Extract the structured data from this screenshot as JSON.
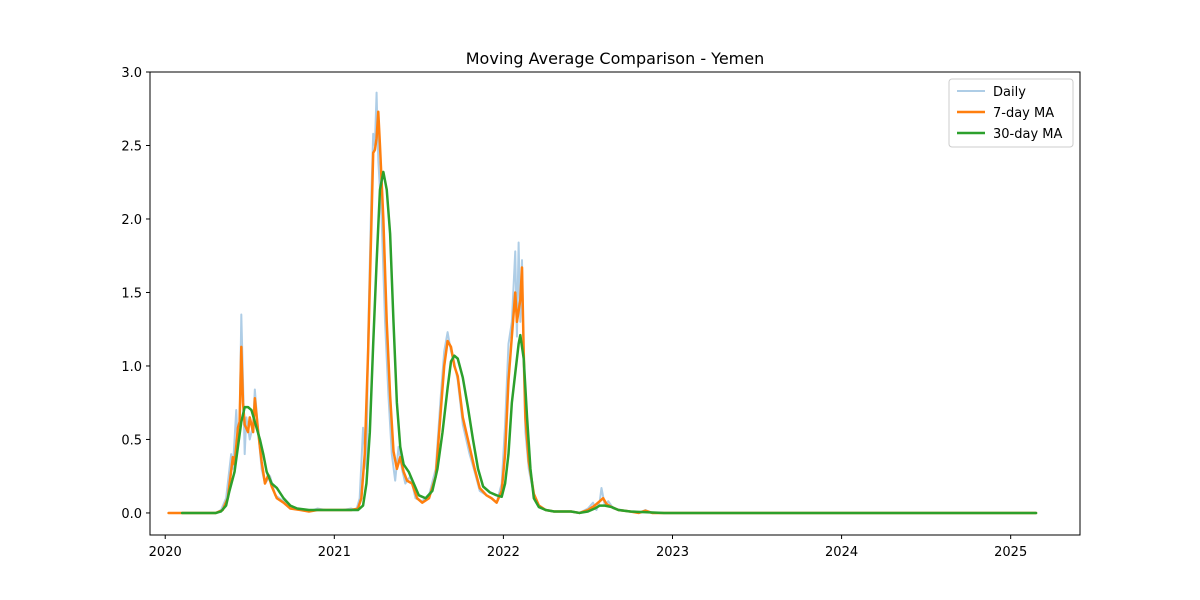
{
  "chart_data": {
    "type": "line",
    "title": "Moving Average Comparison - Yemen",
    "xlabel": "",
    "ylabel": "",
    "xlim": [
      2019.91,
      2025.41
    ],
    "ylim": [
      -0.15,
      3.0
    ],
    "x_ticks": [
      {
        "value": 2020,
        "label": "2020"
      },
      {
        "value": 2021,
        "label": "2021"
      },
      {
        "value": 2022,
        "label": "2022"
      },
      {
        "value": 2023,
        "label": "2023"
      },
      {
        "value": 2024,
        "label": "2024"
      },
      {
        "value": 2025,
        "label": "2025"
      }
    ],
    "y_ticks": [
      {
        "value": 0.0,
        "label": "0.0"
      },
      {
        "value": 0.5,
        "label": "0.5"
      },
      {
        "value": 1.0,
        "label": "1.0"
      },
      {
        "value": 1.5,
        "label": "1.5"
      },
      {
        "value": 2.0,
        "label": "2.0"
      },
      {
        "value": 2.5,
        "label": "2.5"
      },
      {
        "value": 3.0,
        "label": "3.0"
      }
    ],
    "grid": false,
    "legend_position": "top-right",
    "series": [
      {
        "name": "Daily",
        "color": "#aecde6",
        "points": [
          [
            2020.02,
            0
          ],
          [
            2020.3,
            0
          ],
          [
            2020.33,
            0.02
          ],
          [
            2020.36,
            0.1
          ],
          [
            2020.39,
            0.4
          ],
          [
            2020.4,
            0.3
          ],
          [
            2020.42,
            0.7
          ],
          [
            2020.43,
            0.45
          ],
          [
            2020.44,
            0.6
          ],
          [
            2020.45,
            1.35
          ],
          [
            2020.46,
            0.9
          ],
          [
            2020.47,
            0.4
          ],
          [
            2020.48,
            0.65
          ],
          [
            2020.5,
            0.5
          ],
          [
            2020.52,
            0.6
          ],
          [
            2020.53,
            0.84
          ],
          [
            2020.55,
            0.55
          ],
          [
            2020.57,
            0.3
          ],
          [
            2020.59,
            0.2
          ],
          [
            2020.62,
            0.25
          ],
          [
            2020.65,
            0.12
          ],
          [
            2020.7,
            0.08
          ],
          [
            2020.74,
            0.03
          ],
          [
            2020.8,
            0.02
          ],
          [
            2020.85,
            0.01
          ],
          [
            2020.9,
            0.03
          ],
          [
            2020.95,
            0.02
          ],
          [
            2021.0,
            0.02
          ],
          [
            2021.05,
            0.02
          ],
          [
            2021.1,
            0.03
          ],
          [
            2021.13,
            0.02
          ],
          [
            2021.15,
            0.1
          ],
          [
            2021.17,
            0.58
          ],
          [
            2021.19,
            0.3
          ],
          [
            2021.2,
            1.2
          ],
          [
            2021.22,
            2.2
          ],
          [
            2021.23,
            2.58
          ],
          [
            2021.24,
            2.5
          ],
          [
            2021.25,
            2.86
          ],
          [
            2021.26,
            2.4
          ],
          [
            2021.28,
            2.0
          ],
          [
            2021.3,
            1.3
          ],
          [
            2021.32,
            0.8
          ],
          [
            2021.34,
            0.4
          ],
          [
            2021.36,
            0.22
          ],
          [
            2021.38,
            0.45
          ],
          [
            2021.4,
            0.3
          ],
          [
            2021.42,
            0.2
          ],
          [
            2021.45,
            0.25
          ],
          [
            2021.48,
            0.1
          ],
          [
            2021.52,
            0.08
          ],
          [
            2021.56,
            0.12
          ],
          [
            2021.6,
            0.3
          ],
          [
            2021.63,
            0.8
          ],
          [
            2021.65,
            1.1
          ],
          [
            2021.67,
            1.23
          ],
          [
            2021.69,
            1.1
          ],
          [
            2021.71,
            1.02
          ],
          [
            2021.73,
            0.9
          ],
          [
            2021.76,
            0.6
          ],
          [
            2021.8,
            0.4
          ],
          [
            2021.83,
            0.28
          ],
          [
            2021.86,
            0.15
          ],
          [
            2021.9,
            0.12
          ],
          [
            2021.93,
            0.1
          ],
          [
            2021.96,
            0.07
          ],
          [
            2021.99,
            0.2
          ],
          [
            2022.01,
            0.6
          ],
          [
            2022.03,
            1.15
          ],
          [
            2022.05,
            1.3
          ],
          [
            2022.07,
            1.78
          ],
          [
            2022.08,
            1.2
          ],
          [
            2022.09,
            1.84
          ],
          [
            2022.1,
            1.3
          ],
          [
            2022.11,
            1.72
          ],
          [
            2022.12,
            1.0
          ],
          [
            2022.13,
            0.55
          ],
          [
            2022.15,
            0.3
          ],
          [
            2022.18,
            0.12
          ],
          [
            2022.21,
            0.05
          ],
          [
            2022.25,
            0.02
          ],
          [
            2022.3,
            0.01
          ],
          [
            2022.4,
            0.01
          ],
          [
            2022.45,
            0.0
          ],
          [
            2022.5,
            0.03
          ],
          [
            2022.53,
            0.07
          ],
          [
            2022.55,
            0.02
          ],
          [
            2022.57,
            0.08
          ],
          [
            2022.58,
            0.17
          ],
          [
            2022.6,
            0.05
          ],
          [
            2022.62,
            0.08
          ],
          [
            2022.65,
            0.03
          ],
          [
            2022.7,
            0.02
          ],
          [
            2022.75,
            0.01
          ],
          [
            2022.8,
            0.0
          ],
          [
            2022.84,
            0.02
          ],
          [
            2022.88,
            0.0
          ],
          [
            2023.0,
            0
          ],
          [
            2025.15,
            0
          ]
        ]
      },
      {
        "name": "7-day MA",
        "color": "#ff7f0e",
        "points": [
          [
            2020.02,
            0
          ],
          [
            2020.3,
            0
          ],
          [
            2020.34,
            0.02
          ],
          [
            2020.37,
            0.1
          ],
          [
            2020.4,
            0.38
          ],
          [
            2020.41,
            0.33
          ],
          [
            2020.43,
            0.58
          ],
          [
            2020.44,
            0.62
          ],
          [
            2020.45,
            1.13
          ],
          [
            2020.46,
            0.75
          ],
          [
            2020.47,
            0.6
          ],
          [
            2020.49,
            0.55
          ],
          [
            2020.5,
            0.65
          ],
          [
            2020.52,
            0.55
          ],
          [
            2020.53,
            0.78
          ],
          [
            2020.55,
            0.55
          ],
          [
            2020.57,
            0.35
          ],
          [
            2020.59,
            0.2
          ],
          [
            2020.61,
            0.26
          ],
          [
            2020.63,
            0.18
          ],
          [
            2020.66,
            0.1
          ],
          [
            2020.7,
            0.07
          ],
          [
            2020.74,
            0.03
          ],
          [
            2020.8,
            0.02
          ],
          [
            2020.85,
            0.01
          ],
          [
            2020.9,
            0.02
          ],
          [
            2020.95,
            0.02
          ],
          [
            2021.0,
            0.02
          ],
          [
            2021.05,
            0.02
          ],
          [
            2021.1,
            0.02
          ],
          [
            2021.14,
            0.03
          ],
          [
            2021.16,
            0.1
          ],
          [
            2021.18,
            0.4
          ],
          [
            2021.2,
            1.1
          ],
          [
            2021.22,
            2.0
          ],
          [
            2021.23,
            2.45
          ],
          [
            2021.24,
            2.47
          ],
          [
            2021.25,
            2.55
          ],
          [
            2021.26,
            2.73
          ],
          [
            2021.27,
            2.5
          ],
          [
            2021.29,
            2.0
          ],
          [
            2021.31,
            1.3
          ],
          [
            2021.33,
            0.8
          ],
          [
            2021.35,
            0.42
          ],
          [
            2021.37,
            0.3
          ],
          [
            2021.39,
            0.38
          ],
          [
            2021.41,
            0.28
          ],
          [
            2021.43,
            0.22
          ],
          [
            2021.46,
            0.2
          ],
          [
            2021.49,
            0.1
          ],
          [
            2021.52,
            0.07
          ],
          [
            2021.56,
            0.1
          ],
          [
            2021.6,
            0.25
          ],
          [
            2021.63,
            0.7
          ],
          [
            2021.65,
            1.0
          ],
          [
            2021.67,
            1.17
          ],
          [
            2021.69,
            1.13
          ],
          [
            2021.71,
            1.0
          ],
          [
            2021.73,
            0.93
          ],
          [
            2021.76,
            0.65
          ],
          [
            2021.8,
            0.45
          ],
          [
            2021.83,
            0.3
          ],
          [
            2021.86,
            0.17
          ],
          [
            2021.9,
            0.12
          ],
          [
            2021.93,
            0.1
          ],
          [
            2021.96,
            0.07
          ],
          [
            2021.99,
            0.15
          ],
          [
            2022.01,
            0.4
          ],
          [
            2022.03,
            0.9
          ],
          [
            2022.05,
            1.2
          ],
          [
            2022.07,
            1.5
          ],
          [
            2022.08,
            1.3
          ],
          [
            2022.1,
            1.45
          ],
          [
            2022.11,
            1.67
          ],
          [
            2022.12,
            1.1
          ],
          [
            2022.13,
            0.65
          ],
          [
            2022.15,
            0.35
          ],
          [
            2022.18,
            0.13
          ],
          [
            2022.21,
            0.05
          ],
          [
            2022.25,
            0.02
          ],
          [
            2022.3,
            0.01
          ],
          [
            2022.4,
            0.01
          ],
          [
            2022.45,
            0.0
          ],
          [
            2022.5,
            0.02
          ],
          [
            2022.54,
            0.05
          ],
          [
            2022.57,
            0.08
          ],
          [
            2022.59,
            0.1
          ],
          [
            2022.61,
            0.06
          ],
          [
            2022.64,
            0.04
          ],
          [
            2022.68,
            0.02
          ],
          [
            2022.75,
            0.01
          ],
          [
            2022.8,
            0.0
          ],
          [
            2022.84,
            0.015
          ],
          [
            2022.88,
            0.0
          ],
          [
            2023.0,
            0
          ],
          [
            2025.15,
            0
          ]
        ]
      },
      {
        "name": "30-day MA",
        "color": "#2ca02c",
        "points": [
          [
            2020.1,
            0
          ],
          [
            2020.3,
            0
          ],
          [
            2020.33,
            0.01
          ],
          [
            2020.36,
            0.05
          ],
          [
            2020.38,
            0.15
          ],
          [
            2020.41,
            0.28
          ],
          [
            2020.43,
            0.45
          ],
          [
            2020.45,
            0.62
          ],
          [
            2020.47,
            0.72
          ],
          [
            2020.49,
            0.72
          ],
          [
            2020.51,
            0.7
          ],
          [
            2020.53,
            0.62
          ],
          [
            2020.56,
            0.5
          ],
          [
            2020.58,
            0.4
          ],
          [
            2020.6,
            0.28
          ],
          [
            2020.63,
            0.2
          ],
          [
            2020.66,
            0.17
          ],
          [
            2020.7,
            0.1
          ],
          [
            2020.74,
            0.05
          ],
          [
            2020.78,
            0.03
          ],
          [
            2020.85,
            0.02
          ],
          [
            2020.9,
            0.02
          ],
          [
            2021.0,
            0.02
          ],
          [
            2021.05,
            0.02
          ],
          [
            2021.1,
            0.02
          ],
          [
            2021.14,
            0.02
          ],
          [
            2021.17,
            0.05
          ],
          [
            2021.19,
            0.2
          ],
          [
            2021.21,
            0.55
          ],
          [
            2021.23,
            1.15
          ],
          [
            2021.25,
            1.7
          ],
          [
            2021.27,
            2.2
          ],
          [
            2021.29,
            2.32
          ],
          [
            2021.31,
            2.2
          ],
          [
            2021.33,
            1.9
          ],
          [
            2021.35,
            1.3
          ],
          [
            2021.37,
            0.75
          ],
          [
            2021.39,
            0.45
          ],
          [
            2021.41,
            0.33
          ],
          [
            2021.44,
            0.28
          ],
          [
            2021.47,
            0.2
          ],
          [
            2021.5,
            0.12
          ],
          [
            2021.54,
            0.1
          ],
          [
            2021.58,
            0.15
          ],
          [
            2021.61,
            0.3
          ],
          [
            2021.64,
            0.55
          ],
          [
            2021.67,
            0.85
          ],
          [
            2021.69,
            1.03
          ],
          [
            2021.71,
            1.07
          ],
          [
            2021.73,
            1.05
          ],
          [
            2021.76,
            0.92
          ],
          [
            2021.79,
            0.72
          ],
          [
            2021.82,
            0.5
          ],
          [
            2021.85,
            0.3
          ],
          [
            2021.88,
            0.18
          ],
          [
            2021.92,
            0.14
          ],
          [
            2021.96,
            0.12
          ],
          [
            2021.99,
            0.11
          ],
          [
            2022.01,
            0.2
          ],
          [
            2022.03,
            0.4
          ],
          [
            2022.05,
            0.75
          ],
          [
            2022.07,
            0.95
          ],
          [
            2022.09,
            1.15
          ],
          [
            2022.1,
            1.21
          ],
          [
            2022.12,
            1.05
          ],
          [
            2022.14,
            0.65
          ],
          [
            2022.16,
            0.3
          ],
          [
            2022.18,
            0.1
          ],
          [
            2022.21,
            0.04
          ],
          [
            2022.25,
            0.02
          ],
          [
            2022.3,
            0.01
          ],
          [
            2022.4,
            0.01
          ],
          [
            2022.45,
            0.0
          ],
          [
            2022.5,
            0.01
          ],
          [
            2022.54,
            0.03
          ],
          [
            2022.57,
            0.05
          ],
          [
            2022.6,
            0.05
          ],
          [
            2022.64,
            0.04
          ],
          [
            2022.68,
            0.02
          ],
          [
            2022.75,
            0.01
          ],
          [
            2022.85,
            0.005
          ],
          [
            2022.95,
            0
          ],
          [
            2025.15,
            0
          ]
        ]
      }
    ]
  }
}
